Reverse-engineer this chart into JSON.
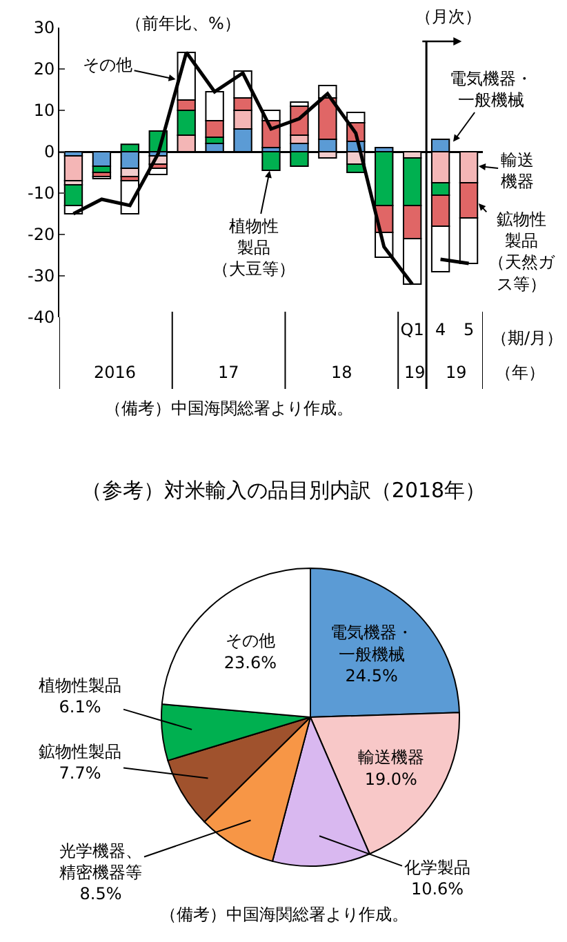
{
  "chart_data": [
    {
      "type": "bar",
      "stacked": true,
      "ylabel": "（前年比、%）",
      "categories": [
        null,
        null,
        null,
        null,
        null,
        null,
        null,
        null,
        null,
        null,
        null,
        null,
        "Q1",
        "4",
        "5"
      ],
      "ylim": [
        -40,
        30
      ],
      "yticks": [
        -40,
        -30,
        -20,
        -10,
        0,
        10,
        20,
        30
      ],
      "annotations": [
        "2016",
        "17",
        "18",
        "19",
        "19",
        "（期/月）",
        "（年）",
        "（月次）",
        "（備考）中国海関総署より作成。"
      ],
      "series": [
        {
          "name": "電気機器・一般機械",
          "color": "#5b9bd5",
          "values": [
            -1,
            -3.5,
            -4,
            -1,
            0,
            2,
            5.5,
            1,
            2,
            3,
            2.5,
            1,
            0,
            3,
            0
          ]
        },
        {
          "name": "輸送機器",
          "color": "#f4b6b6",
          "values": [
            -6,
            0,
            0,
            0,
            4,
            0,
            4.5,
            0,
            2,
            0,
            0,
            0,
            0,
            -7.5,
            -7.5
          ]
        },
        {
          "color": "#f2cccc",
          "values": [
            -1,
            0,
            -2,
            -2,
            0,
            0,
            0,
            0,
            0,
            -1.5,
            -3,
            0,
            -1.5,
            0,
            0
          ]
        },
        {
          "name": "植物性製品（大豆等）",
          "color": "#00b050",
          "values": [
            -5,
            -1.5,
            1.8,
            5,
            6,
            1.5,
            0,
            -4.5,
            -3.5,
            0,
            -2,
            -13,
            -11.5,
            -3,
            0
          ]
        },
        {
          "name": "鉱物性製品（天然ガス等）",
          "color": "#e06666",
          "values": [
            0,
            -1,
            -1,
            -1,
            2.5,
            4,
            3,
            6.5,
            7,
            10,
            4.5,
            -6.5,
            -8,
            -7.5,
            -8.5
          ]
        },
        {
          "name": "その他",
          "color": "#ffffff",
          "values": [
            -2,
            -0.5,
            -8,
            -1.5,
            11.5,
            7,
            6.5,
            2.5,
            1,
            3,
            2.5,
            -6,
            -11,
            -11,
            -11
          ]
        },
        {
          "type": "line",
          "color": "#000000",
          "values": [
            -15,
            -11.5,
            -13,
            -0.5,
            24,
            14.5,
            19,
            5.5,
            8,
            14,
            4.5,
            -23,
            -32,
            null,
            null
          ]
        },
        {
          "type": "line",
          "color": "#000000",
          "values": [
            null,
            null,
            null,
            null,
            null,
            null,
            null,
            null,
            null,
            null,
            null,
            null,
            null,
            -26,
            -27
          ]
        }
      ]
    },
    {
      "type": "pie",
      "title": "（参考）対米輸入の品目別内訳（2018年）",
      "categories": [
        "電気機器・一般機械",
        "輸送機器",
        "化学製品",
        "光学機器、精密機器等",
        "鉱物性製品",
        "植物性製品",
        "その他"
      ],
      "values": [
        24.5,
        19.0,
        10.6,
        8.5,
        7.7,
        6.1,
        23.6
      ],
      "value_labels": [
        "24.5%",
        "19.0%",
        "10.6%",
        "8.5%",
        "7.7%",
        "6.1%",
        "23.6%"
      ],
      "colors": [
        "#5b9bd5",
        "#f8c8c8",
        "#d9b8f0",
        "#f79646",
        "#a0522d",
        "#00b050",
        "#ffffff"
      ],
      "annotations": [
        "（備考）中国海関総署より作成。"
      ]
    }
  ]
}
